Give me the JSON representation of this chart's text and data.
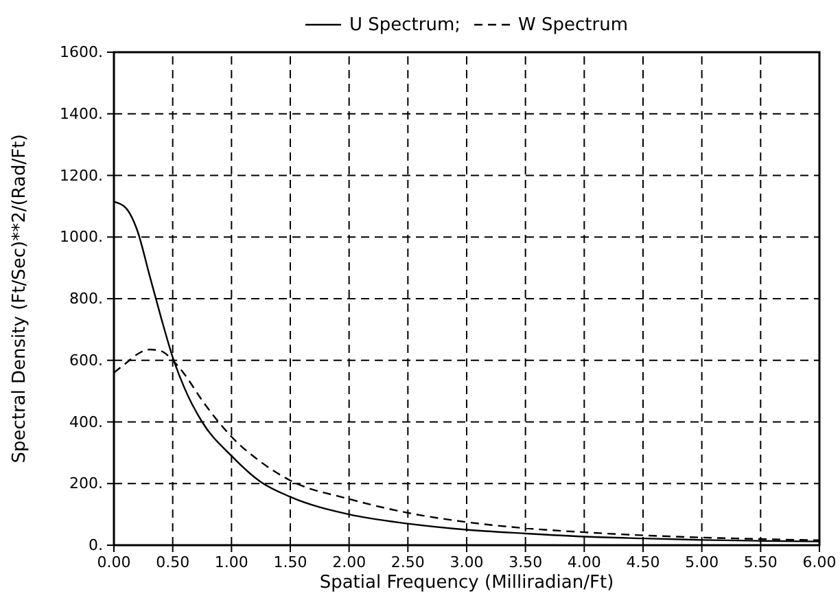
{
  "chart_data": {
    "type": "line",
    "xlabel": "Spatial Frequency (Milliradian/Ft)",
    "ylabel": "Spectral Density (Ft/Sec)**2/(Rad/Ft)",
    "x": [
      0,
      0.1,
      0.2,
      0.3,
      0.4,
      0.5,
      0.6,
      0.75,
      1.0,
      1.25,
      1.5,
      2.0,
      2.5,
      3.0,
      3.5,
      4.0,
      4.5,
      5.0,
      5.5,
      6.0
    ],
    "series": [
      {
        "name": "U Spectrum;",
        "color": "#000000",
        "line_style": "solid",
        "values": [
          1115,
          1095,
          1020,
          880,
          740,
          610,
          510,
          400,
          290,
          205,
          157,
          100,
          70,
          50,
          38,
          28,
          22,
          17,
          14,
          12
        ]
      },
      {
        "name": "W Spectrum",
        "color": "#000000",
        "line_style": "dashed",
        "values": [
          560,
          590,
          620,
          635,
          630,
          600,
          555,
          470,
          352,
          270,
          210,
          150,
          105,
          75,
          55,
          42,
          32,
          25,
          20,
          16
        ]
      }
    ],
    "xlim": [
      0,
      6
    ],
    "ylim": [
      0,
      1600
    ],
    "xticks": [
      {
        "value": 0,
        "label": "0.00"
      },
      {
        "value": 0.5,
        "label": "0.50"
      },
      {
        "value": 1,
        "label": "1.00"
      },
      {
        "value": 1.5,
        "label": "1.50"
      },
      {
        "value": 2,
        "label": "2.00"
      },
      {
        "value": 2.5,
        "label": "2.50"
      },
      {
        "value": 3,
        "label": "3.00"
      },
      {
        "value": 3.5,
        "label": "3.50"
      },
      {
        "value": 4,
        "label": "4.00"
      },
      {
        "value": 4.5,
        "label": "4.50"
      },
      {
        "value": 5,
        "label": "5.00"
      },
      {
        "value": 5.5,
        "label": "5.50"
      },
      {
        "value": 6,
        "label": "6.00"
      }
    ],
    "yticks": [
      {
        "value": 0,
        "label": "0."
      },
      {
        "value": 200,
        "label": "200."
      },
      {
        "value": 400,
        "label": "400."
      },
      {
        "value": 600,
        "label": "600."
      },
      {
        "value": 800,
        "label": "800."
      },
      {
        "value": 1000,
        "label": "1000."
      },
      {
        "value": 1200,
        "label": "1200."
      },
      {
        "value": 1400,
        "label": "1400."
      },
      {
        "value": 1600,
        "label": "1600."
      }
    ],
    "grid": true,
    "legend": "top",
    "marker": "none"
  }
}
